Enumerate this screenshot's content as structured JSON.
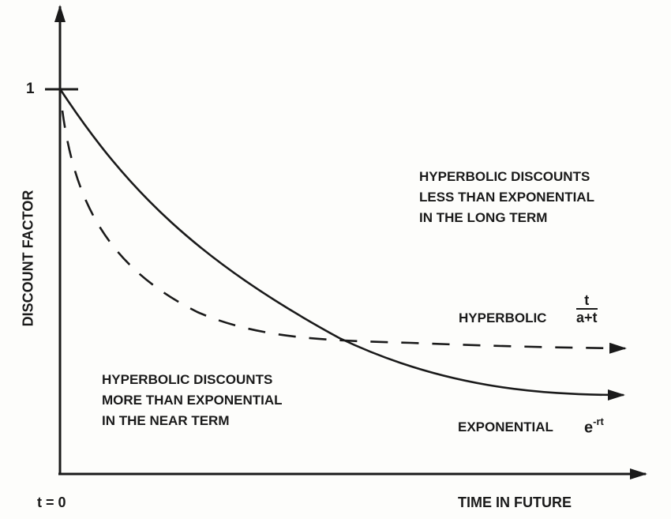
{
  "axes": {
    "y_label": "DISCOUNT FACTOR",
    "y_tick": "1",
    "x_origin": "t = 0",
    "x_label": "TIME IN FUTURE"
  },
  "annotations": {
    "long_term": [
      "HYPERBOLIC DISCOUNTS",
      "LESS THAN EXPONENTIAL",
      "IN THE LONG TERM"
    ],
    "near_term": [
      "HYPERBOLIC DISCOUNTS",
      "MORE THAN EXPONENTIAL",
      "IN THE NEAR TERM"
    ]
  },
  "curves": {
    "hyperbolic": {
      "label": "HYPERBOLIC",
      "formula_num": "t",
      "formula_den": "a+t",
      "style": "dashed"
    },
    "exponential": {
      "label": "EXPONENTIAL",
      "formula_base": "e",
      "formula_exp": "-rt",
      "style": "solid"
    }
  },
  "colors": {
    "ink": "#1a1a1a",
    "background": "#fdfdfb"
  }
}
